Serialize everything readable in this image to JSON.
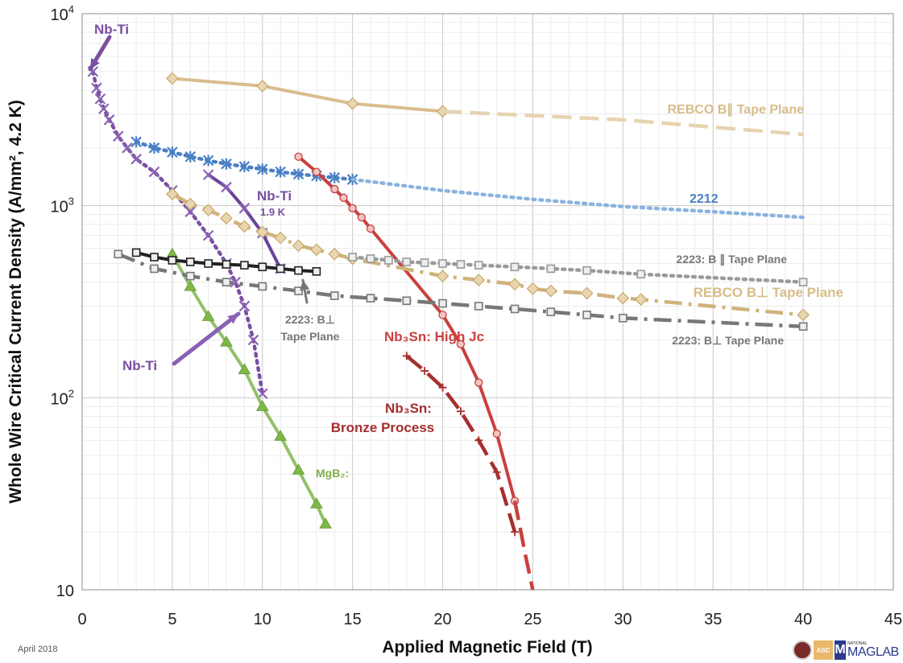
{
  "chart_data": {
    "type": "line",
    "xlabel": "Applied Magnetic Field (T)",
    "ylabel": "Whole Wire Critical Current Density (A/mm², 4.2 K)",
    "xlim": [
      0,
      45
    ],
    "ylim": [
      10,
      10000
    ],
    "yscale": "log",
    "grid": true,
    "x_ticks": [
      "0",
      "5",
      "10",
      "15",
      "20",
      "25",
      "30",
      "35",
      "40",
      "45"
    ],
    "y_ticks": [
      {
        "base": "10"
      },
      {
        "base": "10",
        "exp": "2"
      },
      {
        "base": "10",
        "exp": "3"
      },
      {
        "base": "10",
        "exp": "4"
      }
    ],
    "series": [
      {
        "name": "REBCO B∥ Tape Plane",
        "color": "#d9bd8c",
        "style": "solid",
        "marker": "diamond",
        "x": [
          5,
          10,
          15,
          20
        ],
        "y": [
          4600,
          4200,
          3400,
          3100
        ]
      },
      {
        "name": "REBCO B∥ Tape Plane",
        "color": "#e6d3b0",
        "style": "dashed",
        "marker": "none",
        "x": [
          20,
          30,
          40
        ],
        "y": [
          3100,
          2800,
          2350
        ]
      },
      {
        "name": "2212",
        "color": "#4a7fc4",
        "style": "dotted",
        "marker": "star",
        "x": [
          3,
          4,
          5,
          6,
          7,
          8,
          9,
          10,
          11,
          12,
          13,
          14,
          15
        ],
        "y": [
          2150,
          2000,
          1900,
          1800,
          1720,
          1650,
          1600,
          1550,
          1500,
          1460,
          1430,
          1400,
          1370
        ]
      },
      {
        "name": "2212",
        "color": "#8ab3df",
        "style": "dotted",
        "marker": "none",
        "x": [
          15,
          20,
          25,
          30,
          35,
          40
        ],
        "y": [
          1370,
          1200,
          1080,
          990,
          930,
          870
        ]
      },
      {
        "name": "Nb-Ti",
        "color": "#7a4fa0",
        "style": "dotted",
        "marker": "x",
        "x": [
          0.6,
          0.8,
          1,
          1.2,
          1.5,
          2,
          2.5,
          3,
          4,
          5,
          6,
          7,
          8,
          8.5,
          9,
          9.5,
          10
        ],
        "y": [
          5000,
          4100,
          3600,
          3200,
          2800,
          2300,
          2000,
          1750,
          1500,
          1200,
          930,
          700,
          500,
          400,
          300,
          200,
          105
        ]
      },
      {
        "name": "Nb-Ti 1.9 K",
        "color": "#6a4398",
        "style": "solid",
        "marker": "x",
        "x": [
          7,
          8,
          9,
          10,
          11
        ],
        "y": [
          1450,
          1250,
          970,
          720,
          470
        ]
      },
      {
        "name": "MgB₂",
        "color": "#93c06a",
        "style": "solid",
        "marker": "triangle",
        "x": [
          5,
          6,
          7,
          8,
          9,
          10,
          11,
          12,
          13,
          13.5
        ],
        "y": [
          560,
          380,
          265,
          195,
          140,
          90,
          63,
          42,
          28,
          22
        ]
      },
      {
        "name": "Nb₃Sn: High Jc",
        "color": "#c9403e",
        "style": "solid",
        "marker": "circle",
        "x": [
          12,
          13,
          14,
          14.5,
          15,
          15.5,
          16,
          20,
          21,
          22,
          23,
          24
        ],
        "y": [
          1800,
          1500,
          1220,
          1100,
          970,
          870,
          760,
          270,
          190,
          120,
          65,
          29
        ]
      },
      {
        "name": "Nb₃Sn: High Jc",
        "color": "#c9403e",
        "style": "dashed",
        "marker": "none",
        "x": [
          24,
          24.6,
          25
        ],
        "y": [
          29,
          15,
          10
        ]
      },
      {
        "name": "Nb₃Sn: Bronze Process",
        "color": "#a62f2e",
        "style": "dashed",
        "marker": "plus",
        "x": [
          18,
          19,
          20,
          21,
          22,
          23,
          24
        ],
        "y": [
          165,
          138,
          113,
          85,
          60,
          41,
          20
        ]
      },
      {
        "name": "REBCO B⊥ Tape Plane",
        "color": "#cfb37c",
        "style": "dashdot",
        "marker": "diamond",
        "x": [
          5,
          6,
          7,
          8,
          9,
          10,
          11,
          12,
          13,
          14,
          15,
          20,
          22,
          24,
          25,
          26,
          28,
          30,
          31,
          40
        ],
        "y": [
          1150,
          1020,
          950,
          860,
          780,
          730,
          680,
          620,
          590,
          560,
          530,
          430,
          410,
          390,
          370,
          360,
          350,
          330,
          325,
          270
        ]
      },
      {
        "name": "2223: B ∥ Tape Plane",
        "color": "#9a9a9a",
        "style": "dotted",
        "marker": "square",
        "x": [
          15,
          16,
          17,
          18,
          19,
          20,
          21,
          22,
          24,
          26,
          28,
          31,
          40
        ],
        "y": [
          540,
          530,
          520,
          510,
          505,
          500,
          495,
          490,
          480,
          470,
          460,
          440,
          400
        ]
      },
      {
        "name": "2223: B⊥ Tape Plane",
        "color": "#777777",
        "style": "dashdot",
        "marker": "square",
        "x": [
          2,
          4,
          6,
          8,
          10,
          12,
          14,
          16,
          18,
          20,
          22,
          24,
          26,
          28,
          30,
          40
        ],
        "y": [
          560,
          470,
          430,
          400,
          380,
          360,
          340,
          330,
          320,
          310,
          300,
          290,
          280,
          270,
          260,
          235
        ]
      },
      {
        "name": "2223: B⊥ Tape Plane",
        "color": "#222222",
        "style": "solid",
        "marker": "square",
        "x": [
          3,
          4,
          5,
          6,
          7,
          8,
          9,
          10,
          11,
          12,
          13
        ],
        "y": [
          570,
          540,
          520,
          510,
          500,
          495,
          490,
          480,
          470,
          460,
          455
        ]
      }
    ],
    "annotations": [
      {
        "text": "Nb-Ti",
        "color": "#7a4fa0"
      },
      {
        "text": "Nb-Ti",
        "color": "#7a4fa0"
      },
      {
        "text": "Nb-Ti",
        "color": "#7a4fa0"
      },
      {
        "text": "1.9 K",
        "color": "#7a4fa0"
      },
      {
        "text": "REBCO B∥ Tape Plane",
        "color": "#d8bd88"
      },
      {
        "text": "2212",
        "color": "#4a7fc4"
      },
      {
        "text": "2223: B ∥ Tape Plane",
        "color": "#777777"
      },
      {
        "text": "REBCO B⊥ Tape Plane",
        "color": "#d8bd88"
      },
      {
        "text": "2223: B⊥",
        "color": "#777777"
      },
      {
        "text": "Tape Plane",
        "color": "#777777"
      },
      {
        "text": "2223: B⊥ Tape Plane",
        "color": "#777777"
      },
      {
        "text": "Nb₃Sn: High Jc",
        "color": "#c9403e"
      },
      {
        "text": "Nb₃Sn:",
        "color": "#a62f2e"
      },
      {
        "text": "Bronze Process",
        "color": "#a62f2e"
      },
      {
        "text": "MgB₂:",
        "color": "#7fae4a"
      }
    ]
  },
  "footer": {
    "date": "April 2018",
    "logo_national": "NATIONAL",
    "logo_maglab": "MAGLAB",
    "logo_asc": "ASC"
  }
}
